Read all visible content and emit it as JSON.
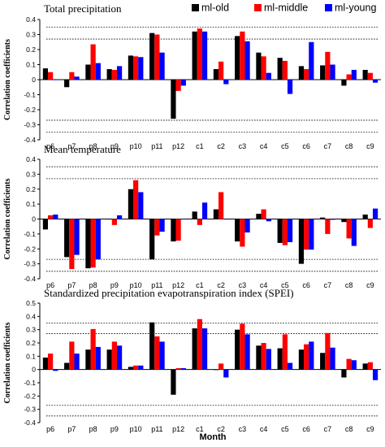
{
  "legend": [
    {
      "name": "ml-old",
      "color": "#000000"
    },
    {
      "name": "ml-middle",
      "color": "#ff0000"
    },
    {
      "name": "ml-young",
      "color": "#0000ff"
    }
  ],
  "xlabel": "Month",
  "chart_data": [
    {
      "type": "bar",
      "title": "Total precipitation",
      "ylabel": "Correlation coefficients",
      "ylim": [
        -0.4,
        0.4
      ],
      "yticks": [
        -0.4,
        -0.3,
        -0.2,
        -0.1,
        0,
        0.1,
        0.2,
        0.3,
        0.4
      ],
      "reference_lines": [
        0.35,
        0.27,
        -0.27,
        -0.35
      ],
      "categories": [
        "p6",
        "p7",
        "p8",
        "p9",
        "p10",
        "p11",
        "p12",
        "c1",
        "c2",
        "c3",
        "c4",
        "c5",
        "c6",
        "c7",
        "c8",
        "c9"
      ],
      "series": [
        {
          "name": "ml-old",
          "values": [
            0.075,
            -0.05,
            0.1,
            0.07,
            0.16,
            0.31,
            -0.26,
            0.32,
            0.07,
            0.29,
            0.18,
            0.145,
            0.09,
            0.095,
            -0.04,
            0.065
          ]
        },
        {
          "name": "ml-middle",
          "values": [
            0.05,
            0.05,
            0.235,
            0.065,
            0.155,
            0.3,
            -0.075,
            0.34,
            0.12,
            0.32,
            0.155,
            0.125,
            0.07,
            0.185,
            0.035,
            0.045
          ]
        },
        {
          "name": "ml-young",
          "values": [
            0.0,
            0.02,
            0.11,
            0.09,
            0.15,
            0.18,
            -0.04,
            0.32,
            -0.03,
            0.255,
            0.045,
            -0.095,
            0.25,
            0.1,
            0.065,
            -0.02
          ]
        }
      ]
    },
    {
      "type": "bar",
      "title": "Mean temperature",
      "ylabel": "Correlation coefficients",
      "ylim": [
        -0.4,
        0.4
      ],
      "yticks": [
        -0.4,
        -0.3,
        -0.2,
        -0.1,
        0,
        0.1,
        0.2,
        0.3,
        0.4
      ],
      "reference_lines": [
        0.35,
        0.27,
        -0.27,
        -0.35
      ],
      "categories": [
        "p6",
        "p7",
        "p8",
        "p9",
        "p10",
        "p11",
        "p12",
        "c1",
        "c2",
        "c3",
        "c4",
        "c5",
        "c6",
        "c7",
        "c8",
        "c9"
      ],
      "series": [
        {
          "name": "ml-old",
          "values": [
            -0.07,
            -0.255,
            -0.33,
            0.0,
            0.2,
            -0.27,
            -0.15,
            0.05,
            0.065,
            -0.15,
            0.035,
            -0.16,
            -0.3,
            0.01,
            -0.02,
            0.03
          ]
        },
        {
          "name": "ml-middle",
          "values": [
            0.025,
            -0.335,
            -0.325,
            -0.04,
            0.26,
            -0.11,
            -0.145,
            -0.04,
            0.18,
            -0.185,
            0.065,
            -0.175,
            -0.205,
            -0.1,
            -0.13,
            -0.06
          ]
        },
        {
          "name": "ml-young",
          "values": [
            0.03,
            -0.24,
            -0.27,
            0.025,
            0.18,
            -0.085,
            0.0,
            0.11,
            0.0,
            -0.09,
            -0.015,
            -0.155,
            -0.205,
            -0.005,
            -0.18,
            0.07
          ]
        }
      ]
    },
    {
      "type": "bar",
      "title": "Standardized precipitation evapotranspiration index (SPEI)",
      "ylabel": "Correlation coefficients",
      "ylim": [
        -0.4,
        0.5
      ],
      "yticks": [
        -0.4,
        -0.3,
        -0.2,
        -0.1,
        0,
        0.1,
        0.2,
        0.3,
        0.4,
        0.5
      ],
      "reference_lines": [
        0.35,
        0.27,
        -0.27,
        -0.35
      ],
      "categories": [
        "p6",
        "p7",
        "p8",
        "p9",
        "p10",
        "p11",
        "p12",
        "c1",
        "c2",
        "c3",
        "c4",
        "c5",
        "c6",
        "c7",
        "c8",
        "c9"
      ],
      "series": [
        {
          "name": "ml-old",
          "values": [
            0.09,
            0.05,
            0.15,
            0.15,
            0.02,
            0.355,
            -0.19,
            0.31,
            0.0,
            0.3,
            0.18,
            0.16,
            0.15,
            0.125,
            -0.06,
            0.045
          ]
        },
        {
          "name": "ml-middle",
          "values": [
            0.12,
            0.21,
            0.305,
            0.21,
            0.03,
            0.25,
            0.01,
            0.38,
            0.045,
            0.345,
            0.2,
            0.265,
            0.19,
            0.275,
            0.08,
            0.055
          ]
        },
        {
          "name": "ml-young",
          "values": [
            -0.01,
            0.12,
            0.17,
            0.18,
            0.03,
            0.21,
            0.01,
            0.31,
            -0.06,
            0.265,
            0.155,
            0.05,
            0.21,
            0.165,
            0.07,
            -0.08
          ]
        }
      ]
    }
  ]
}
